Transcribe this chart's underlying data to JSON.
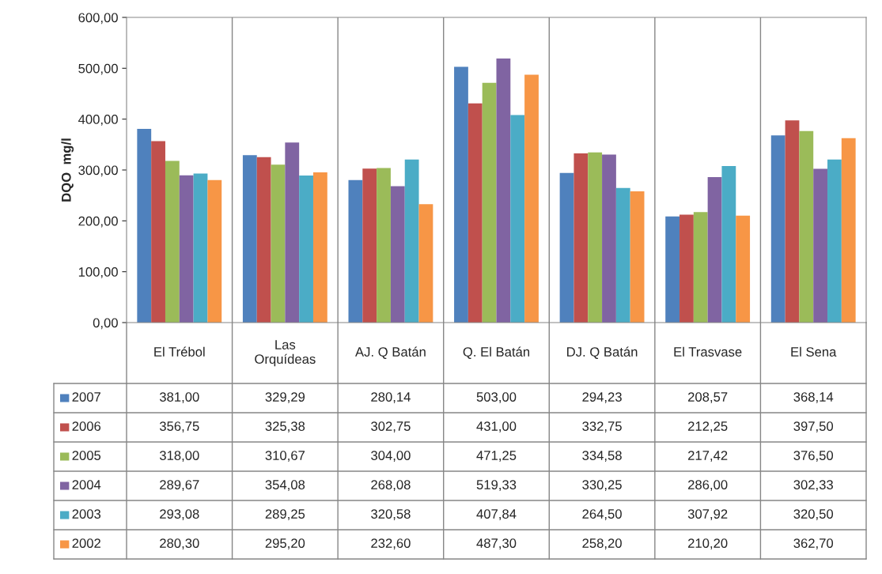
{
  "chart_data": {
    "type": "bar",
    "ylabel": "DQO  mg/l",
    "categories": [
      "El Trébol",
      "Las Orquídeas",
      "AJ. Q Batán",
      "Q. El Batán",
      "DJ. Q Batán",
      "El Trasvase",
      "El Sena"
    ],
    "ylim": [
      0,
      600
    ],
    "yticks": [
      {
        "value": 0,
        "label": "0,00"
      },
      {
        "value": 100,
        "label": "100,00"
      },
      {
        "value": 200,
        "label": "200,00"
      },
      {
        "value": 300,
        "label": "300,00"
      },
      {
        "value": 400,
        "label": "400,00"
      },
      {
        "value": 500,
        "label": "500,00"
      },
      {
        "value": 600,
        "label": "600,00"
      }
    ],
    "grid": false,
    "legend": "bottom",
    "series": [
      {
        "name": "2007",
        "color": "#4f81bd",
        "values": [
          381.0,
          329.29,
          280.14,
          503.0,
          294.23,
          208.57,
          368.14
        ],
        "value_labels": [
          "381,00",
          "329,29",
          "280,14",
          "503,00",
          "294,23",
          "208,57",
          "368,14"
        ]
      },
      {
        "name": "2006",
        "color": "#c0504d",
        "values": [
          356.75,
          325.38,
          302.75,
          431.0,
          332.75,
          212.25,
          397.5
        ],
        "value_labels": [
          "356,75",
          "325,38",
          "302,75",
          "431,00",
          "332,75",
          "212,25",
          "397,50"
        ]
      },
      {
        "name": "2005",
        "color": "#9bbb59",
        "values": [
          318.0,
          310.67,
          304.0,
          471.25,
          334.58,
          217.42,
          376.5
        ],
        "value_labels": [
          "318,00",
          "310,67",
          "304,00",
          "471,25",
          "334,58",
          "217,42",
          "376,50"
        ]
      },
      {
        "name": "2004",
        "color": "#8064a2",
        "values": [
          289.67,
          354.08,
          268.08,
          519.33,
          330.25,
          286.0,
          302.33
        ],
        "value_labels": [
          "289,67",
          "354,08",
          "268,08",
          "519,33",
          "330,25",
          "286,00",
          "302,33"
        ]
      },
      {
        "name": "2003",
        "color": "#4bacc6",
        "values": [
          293.08,
          289.25,
          320.58,
          407.84,
          264.5,
          307.92,
          320.5
        ],
        "value_labels": [
          "293,08",
          "289,25",
          "320,58",
          "407,84",
          "264,50",
          "307,92",
          "320,50"
        ]
      },
      {
        "name": "2002",
        "color": "#f79646",
        "values": [
          280.3,
          295.2,
          232.6,
          487.3,
          258.2,
          210.2,
          362.7
        ],
        "value_labels": [
          "280,30",
          "295,20",
          "232,60",
          "487,30",
          "258,20",
          "210,20",
          "362,70"
        ]
      }
    ]
  }
}
